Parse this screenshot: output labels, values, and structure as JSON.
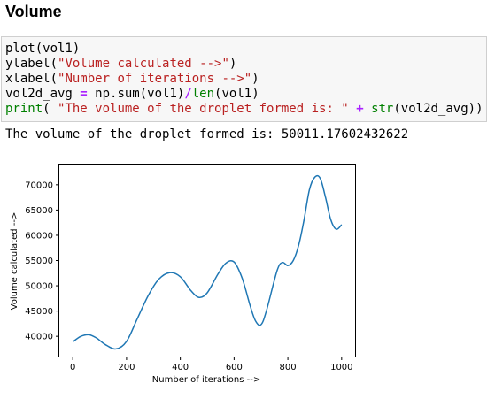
{
  "heading": "Volume",
  "code_cell": {
    "lines": [
      [
        {
          "t": "plain",
          "v": "plot(vol1)"
        }
      ],
      [
        {
          "t": "plain",
          "v": "ylabel("
        },
        {
          "t": "str",
          "v": "\"Volume calculated -->\""
        },
        {
          "t": "plain",
          "v": ")"
        }
      ],
      [
        {
          "t": "plain",
          "v": "xlabel("
        },
        {
          "t": "str",
          "v": "\"Number of iterations -->\""
        },
        {
          "t": "plain",
          "v": ")"
        }
      ],
      [
        {
          "t": "plain",
          "v": "vol2d_avg "
        },
        {
          "t": "op",
          "v": "="
        },
        {
          "t": "plain",
          "v": " np.sum(vol1)"
        },
        {
          "t": "op",
          "v": "/"
        },
        {
          "t": "builtin",
          "v": "len"
        },
        {
          "t": "plain",
          "v": "(vol1)"
        }
      ],
      [
        {
          "t": "builtin",
          "v": "print"
        },
        {
          "t": "plain",
          "v": "( "
        },
        {
          "t": "str",
          "v": "\"The volume of the droplet formed is: \""
        },
        {
          "t": "plain",
          "v": " "
        },
        {
          "t": "op",
          "v": "+"
        },
        {
          "t": "plain",
          "v": " "
        },
        {
          "t": "builtin",
          "v": "str"
        },
        {
          "t": "plain",
          "v": "(vol2d_avg))"
        }
      ]
    ]
  },
  "output_text": "The volume of the droplet formed is: 50011.17602432622",
  "colors": {
    "line": "#1f77b4",
    "string": "#ba2121",
    "operator": "#aa22ff",
    "builtin": "#008000"
  },
  "chart_data": {
    "type": "line",
    "xlabel": "Number of iterations -->",
    "ylabel": "Volume calculated -->",
    "xlim": [
      -50,
      1050
    ],
    "ylim": [
      36000,
      74000
    ],
    "xticks": [
      0,
      200,
      400,
      600,
      800,
      1000
    ],
    "yticks": [
      40000,
      45000,
      50000,
      55000,
      60000,
      65000,
      70000
    ],
    "grid": false,
    "x": [
      0,
      30,
      60,
      90,
      120,
      160,
      200,
      240,
      280,
      320,
      360,
      400,
      440,
      470,
      500,
      540,
      570,
      600,
      630,
      660,
      680,
      700,
      720,
      760,
      780,
      800,
      820,
      840,
      860,
      880,
      900,
      920,
      940,
      960,
      980,
      1000
    ],
    "y": [
      38900,
      40000,
      40300,
      39600,
      38400,
      37500,
      39000,
      43500,
      48000,
      51300,
      52600,
      51800,
      49000,
      47700,
      48600,
      52300,
      54500,
      54700,
      51500,
      46000,
      43000,
      42300,
      45000,
      53000,
      54600,
      54000,
      55000,
      58000,
      63000,
      69000,
      71500,
      71300,
      67500,
      63000,
      61200,
      62100
    ]
  }
}
